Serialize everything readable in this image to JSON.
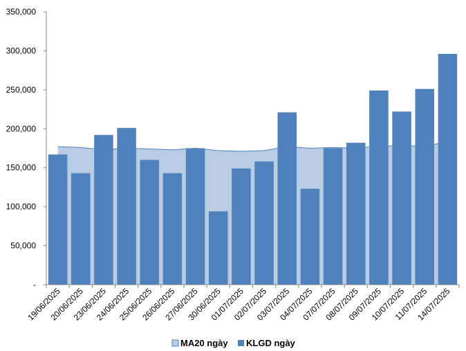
{
  "chart_data": {
    "type": "bar",
    "categories": [
      "19/06/2025",
      "20/06/2025",
      "23/06/2025",
      "24/06/2025",
      "25/06/2025",
      "26/06/2025",
      "27/06/2025",
      "30/06/2025",
      "01/07/2025",
      "02/07/2025",
      "03/07/2025",
      "04/07/2025",
      "07/07/2025",
      "08/07/2025",
      "09/07/2025",
      "10/07/2025",
      "11/07/2025",
      "14/07/2025"
    ],
    "series": [
      {
        "name": "MA20 ngày",
        "type": "area",
        "color": "#b8cce4",
        "values": [
          177000,
          176000,
          173000,
          175000,
          174000,
          173000,
          175000,
          172000,
          171000,
          172000,
          177000,
          175000,
          176000,
          175000,
          178000,
          178000,
          178000,
          183000
        ]
      },
      {
        "name": "KLGD ngày",
        "type": "bar",
        "color": "#4f81bd",
        "values": [
          167000,
          143000,
          192000,
          201000,
          160000,
          143000,
          175000,
          94000,
          149000,
          158000,
          221000,
          123000,
          175000,
          182000,
          249000,
          222000,
          251000,
          296000
        ]
      }
    ],
    "y_ticks": [
      "-",
      "50,000",
      "100,000",
      "150,000",
      "200,000",
      "250,000",
      "300,000",
      "350,000"
    ],
    "ylim": [
      0,
      350000
    ],
    "legend_position": "bottom",
    "grid": false
  }
}
